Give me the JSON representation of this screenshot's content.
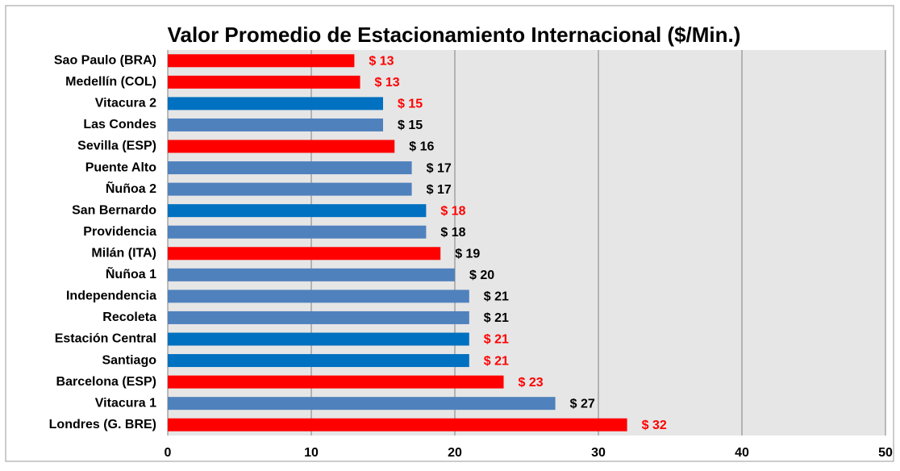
{
  "chart_data": {
    "type": "hbar",
    "title": "Valor Promedio de Estacionamiento Internacional ($/Min.)",
    "categories": [
      "Sao Paulo (BRA)",
      "Medellín (COL)",
      "Vitacura 2",
      "Las Condes",
      "Sevilla (ESP)",
      "Puente Alto",
      "Ñuñoa 2",
      "San Bernardo",
      "Providencia",
      "Milán (ITA)",
      "Ñuñoa 1",
      "Independencia",
      "Recoleta",
      "Estación Central",
      "Santiago",
      "Barcelona (ESP)",
      "Vitacura 1",
      "Londres (G. BRE)"
    ],
    "values": [
      13,
      13.4,
      15,
      15,
      15.8,
      17,
      17,
      18,
      18,
      19,
      20,
      21,
      21,
      21,
      21,
      23.4,
      27,
      32
    ],
    "value_labels": [
      "$ 13",
      "$ 13",
      "$ 15",
      "$ 15",
      "$ 16",
      "$ 17",
      "$ 17",
      "$ 18",
      "$ 18",
      "$ 19",
      "$ 20",
      "$ 21",
      "$ 21",
      "$ 21",
      "$ 21",
      "$ 23",
      "$ 27",
      "$ 32"
    ],
    "colors": [
      "#ff0000",
      "#ff0000",
      "#0070c0",
      "#4f81bd",
      "#ff0000",
      "#4f81bd",
      "#4f81bd",
      "#0070c0",
      "#4f81bd",
      "#ff0000",
      "#4f81bd",
      "#4f81bd",
      "#4f81bd",
      "#0070c0",
      "#0070c0",
      "#ff0000",
      "#4f81bd",
      "#ff0000"
    ],
    "label_colors": [
      "#ff0000",
      "#ff0000",
      "#ff0000",
      "#000000",
      "#000000",
      "#000000",
      "#000000",
      "#ff0000",
      "#000000",
      "#000000",
      "#000000",
      "#000000",
      "#000000",
      "#ff0000",
      "#ff0000",
      "#ff0000",
      "#000000",
      "#ff0000"
    ],
    "xlim": [
      0,
      50
    ],
    "xticks": [
      0,
      10,
      20,
      30,
      40,
      50
    ],
    "grid": true
  }
}
